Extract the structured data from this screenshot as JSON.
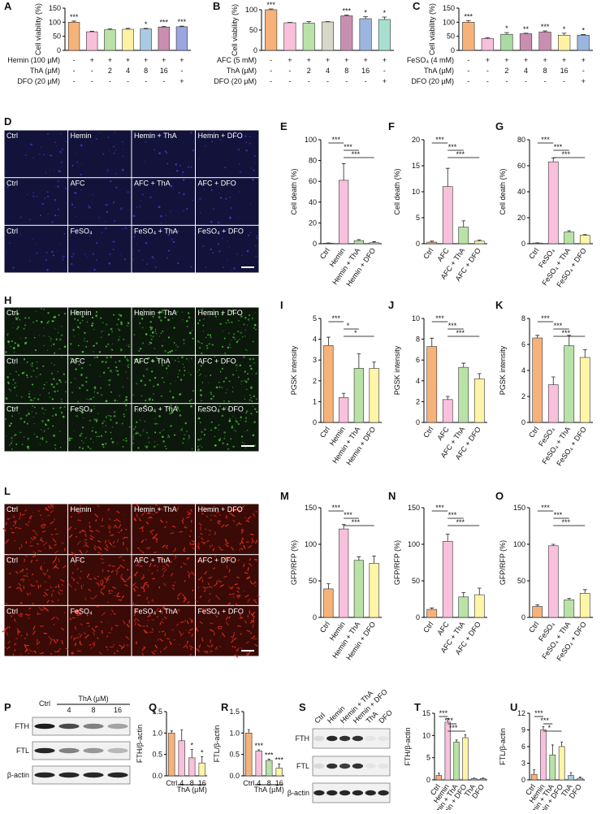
{
  "chart_data": [
    {
      "type": "bar",
      "panel": "A",
      "y_label": "Cell viability (%)",
      "values": [
        100,
        66,
        73,
        75,
        76,
        83,
        84
      ],
      "errors": [
        4,
        2,
        3,
        3,
        2,
        2,
        2
      ],
      "stars": [
        "***",
        null,
        null,
        null,
        "*",
        "***",
        "***"
      ],
      "colors": [
        "#f7b27a",
        "#f9c0dc",
        "#b9e2a6",
        "#fff3a3",
        "#a9cbe6",
        "#c98fb0",
        "#9aa6e0"
      ],
      "ylim": [
        0,
        150
      ],
      "yticks": [
        0,
        50,
        100,
        150
      ],
      "condition_rows": [
        {
          "label": "Hemin (100 µM)",
          "cells": [
            "-",
            "+",
            "+",
            "+",
            "+",
            "+",
            "+"
          ]
        },
        {
          "label": "ThA (µM)",
          "cells": [
            "-",
            "-",
            "2",
            "4",
            "8",
            "16",
            "-"
          ]
        },
        {
          "label": "DFO (20 µM)",
          "cells": [
            "-",
            "-",
            "-",
            "-",
            "-",
            "-",
            "+"
          ]
        }
      ]
    },
    {
      "type": "bar",
      "panel": "B",
      "y_label": "Cell viability (%)",
      "values": [
        100,
        68,
        67,
        70,
        85,
        78,
        76
      ],
      "errors": [
        2,
        1,
        4,
        1,
        2,
        5,
        6
      ],
      "stars": [
        "***",
        null,
        null,
        null,
        "***",
        "*",
        "*"
      ],
      "colors": [
        "#f7b27a",
        "#f9c0dc",
        "#b9e2a6",
        "#d8d8c8",
        "#c98fb0",
        "#9ab6e0",
        "#a8e0d0"
      ],
      "ylim": [
        0,
        100
      ],
      "yticks": [
        0,
        50,
        100
      ],
      "condition_rows": [
        {
          "label": "AFC (5 mM)",
          "cells": [
            "-",
            "+",
            "+",
            "+",
            "+",
            "+",
            "+"
          ]
        },
        {
          "label": "ThA (µM)",
          "cells": [
            "-",
            "-",
            "2",
            "4",
            "8",
            "16",
            "-"
          ]
        },
        {
          "label": "DFO (20 µM)",
          "cells": [
            "-",
            "-",
            "-",
            "-",
            "-",
            "-",
            "+"
          ]
        }
      ]
    },
    {
      "type": "bar",
      "panel": "C",
      "y_label": "Cell viability (%)",
      "values": [
        100,
        42,
        57,
        59,
        65,
        54,
        54
      ],
      "errors": [
        6,
        3,
        6,
        2,
        4,
        7,
        2
      ],
      "stars": [
        "***",
        null,
        "*",
        "**",
        "***",
        "*",
        "*"
      ],
      "colors": [
        "#f7b27a",
        "#f9c0dc",
        "#a8dca0",
        "#c98fb0",
        "#c98fb0",
        "#fff3a3",
        "#9ab6e0"
      ],
      "ylim": [
        0,
        150
      ],
      "yticks": [
        0,
        50,
        100,
        150
      ],
      "condition_rows": [
        {
          "label": "FeSO₄ (4 mM)",
          "cells": [
            "-",
            "+",
            "+",
            "+",
            "+",
            "+",
            "+"
          ]
        },
        {
          "label": "ThA (µM)",
          "cells": [
            "-",
            "-",
            "2",
            "4",
            "8",
            "16",
            "-"
          ]
        },
        {
          "label": "DFO (20 µM)",
          "cells": [
            "-",
            "-",
            "-",
            "-",
            "-",
            "-",
            "+"
          ]
        }
      ]
    },
    {
      "type": "bar",
      "panel": "E",
      "y_label": "Cell death (%)",
      "categories": [
        "Ctrl",
        "Hemin",
        "Hemin + ThA",
        "Hemin + DFO"
      ],
      "values": [
        0.5,
        61,
        3,
        1
      ],
      "errors": [
        0.3,
        16,
        1,
        1
      ],
      "colors": [
        "#f7b27a",
        "#f9c0dc",
        "#b9e2a6",
        "#fff5a6"
      ],
      "ylim": [
        0,
        100
      ],
      "yticks": [
        0,
        20,
        40,
        60,
        80,
        100
      ],
      "brackets": [
        {
          "between": [
            0,
            1
          ],
          "label": "***"
        },
        {
          "between": [
            1,
            2
          ],
          "label": "***"
        },
        {
          "between": [
            1,
            3
          ],
          "label": "***"
        }
      ]
    },
    {
      "type": "bar",
      "panel": "F",
      "y_label": "Cell death (%)",
      "categories": [
        "Ctrl",
        "AFC",
        "AFC + ThA",
        "AFC + DFO"
      ],
      "values": [
        0.3,
        11,
        3.2,
        0.5
      ],
      "errors": [
        0.2,
        3.5,
        1.2,
        0.2
      ],
      "colors": [
        "#f7b27a",
        "#f9c0dc",
        "#b9e2a6",
        "#fff5a6"
      ],
      "ylim": [
        0,
        20
      ],
      "yticks": [
        0,
        5,
        10,
        15,
        20
      ],
      "brackets": [
        {
          "between": [
            0,
            1
          ],
          "label": "***"
        },
        {
          "between": [
            1,
            2
          ],
          "label": "***"
        },
        {
          "between": [
            1,
            3
          ],
          "label": "***"
        }
      ]
    },
    {
      "type": "bar",
      "panel": "G",
      "y_label": "Cell death (%)",
      "categories": [
        "Ctrl",
        "FeSO₄",
        "FeSO₄ + ThA",
        "FeSO₄ + DFO"
      ],
      "values": [
        0.5,
        63,
        9,
        6.5
      ],
      "errors": [
        0.2,
        3,
        1,
        0.5
      ],
      "colors": [
        "#f7b27a",
        "#f9c0dc",
        "#b9e2a6",
        "#fff5a6"
      ],
      "ylim": [
        0,
        80
      ],
      "yticks": [
        0,
        20,
        40,
        60,
        80
      ],
      "brackets": [
        {
          "between": [
            0,
            1
          ],
          "label": "***"
        },
        {
          "between": [
            1,
            2
          ],
          "label": "***"
        },
        {
          "between": [
            1,
            3
          ],
          "label": "***"
        }
      ]
    },
    {
      "type": "bar",
      "panel": "I",
      "y_label": "PGSK intensity",
      "categories": [
        "Ctrl",
        "Hemin",
        "Hemin + ThA",
        "Hemin + DFO"
      ],
      "values": [
        3.7,
        1.2,
        2.6,
        2.6
      ],
      "errors": [
        0.4,
        0.2,
        0.7,
        0.3
      ],
      "colors": [
        "#f7b27a",
        "#f9c0dc",
        "#b9e2a6",
        "#fff5a6"
      ],
      "ylim": [
        0,
        5
      ],
      "yticks": [
        0,
        1,
        2,
        3,
        4,
        5
      ],
      "brackets": [
        {
          "between": [
            0,
            1
          ],
          "label": "***"
        },
        {
          "between": [
            1,
            2
          ],
          "label": "*"
        },
        {
          "between": [
            1,
            3
          ],
          "label": "*"
        }
      ]
    },
    {
      "type": "bar",
      "panel": "J",
      "y_label": "PGSK intensity",
      "categories": [
        "Ctrl",
        "AFC",
        "AFC + ThA",
        "AFC + DFO"
      ],
      "values": [
        7.3,
        2.2,
        5.3,
        4.2
      ],
      "errors": [
        0.8,
        0.3,
        0.4,
        0.5
      ],
      "colors": [
        "#f7b27a",
        "#f9c0dc",
        "#b9e2a6",
        "#fff5a6"
      ],
      "ylim": [
        0,
        10
      ],
      "yticks": [
        0,
        2,
        4,
        6,
        8,
        10
      ],
      "brackets": [
        {
          "between": [
            0,
            1
          ],
          "label": "***"
        },
        {
          "between": [
            1,
            2
          ],
          "label": "***"
        },
        {
          "between": [
            1,
            3
          ],
          "label": "***"
        }
      ]
    },
    {
      "type": "bar",
      "panel": "K",
      "y_label": "PGSK intensity",
      "categories": [
        "Ctrl",
        "FeSO₄",
        "FeSO₄ + ThA",
        "FeSO₄ + DFO"
      ],
      "values": [
        6.5,
        2.9,
        5.9,
        5.0
      ],
      "errors": [
        0.2,
        0.6,
        0.8,
        0.6
      ],
      "colors": [
        "#f7b27a",
        "#f9c0dc",
        "#b9e2a6",
        "#fff5a6"
      ],
      "ylim": [
        0,
        8
      ],
      "yticks": [
        0,
        2,
        4,
        6,
        8
      ],
      "brackets": [
        {
          "between": [
            0,
            1
          ],
          "label": "***"
        },
        {
          "between": [
            1,
            2
          ],
          "label": "***"
        },
        {
          "between": [
            1,
            3
          ],
          "label": "***"
        }
      ]
    },
    {
      "type": "bar",
      "panel": "M",
      "y_label": "GFP/RFP (%)",
      "categories": [
        "Ctrl",
        "Hemin",
        "Hemin + ThA",
        "Hemin + DFO"
      ],
      "values": [
        39,
        121,
        78,
        74
      ],
      "errors": [
        7,
        6,
        5,
        10
      ],
      "colors": [
        "#f7b27a",
        "#f9c0dc",
        "#b9e2a6",
        "#fff5a6"
      ],
      "ylim": [
        0,
        150
      ],
      "yticks": [
        0,
        50,
        100,
        150
      ],
      "brackets": [
        {
          "between": [
            0,
            1
          ],
          "label": "***"
        },
        {
          "between": [
            1,
            2
          ],
          "label": "***"
        },
        {
          "between": [
            1,
            3
          ],
          "label": "***"
        }
      ]
    },
    {
      "type": "bar",
      "panel": "N",
      "y_label": "GFP/RFP (%)",
      "categories": [
        "Ctrl",
        "AFC",
        "AFC + ThA",
        "AFC + DFO"
      ],
      "values": [
        11,
        104,
        28,
        31
      ],
      "errors": [
        2,
        10,
        6,
        9
      ],
      "colors": [
        "#f7b27a",
        "#f9c0dc",
        "#b9e2a6",
        "#fff5a6"
      ],
      "ylim": [
        0,
        150
      ],
      "yticks": [
        0,
        50,
        100,
        150
      ],
      "brackets": [
        {
          "between": [
            0,
            1
          ],
          "label": "***"
        },
        {
          "between": [
            1,
            2
          ],
          "label": "***"
        },
        {
          "between": [
            1,
            3
          ],
          "label": "***"
        }
      ]
    },
    {
      "type": "bar",
      "panel": "O",
      "y_label": "GFP/RFP (%)",
      "categories": [
        "Ctrl",
        "FeSO₄",
        "FeSO₄ + ThA",
        "FeSO₄ + DFO"
      ],
      "values": [
        15,
        98,
        24,
        33
      ],
      "errors": [
        2,
        2,
        2,
        5
      ],
      "colors": [
        "#f7b27a",
        "#f9c0dc",
        "#b9e2a6",
        "#fff5a6"
      ],
      "ylim": [
        0,
        150
      ],
      "yticks": [
        0,
        50,
        100,
        150
      ],
      "brackets": [
        {
          "between": [
            0,
            1
          ],
          "label": "***"
        },
        {
          "between": [
            1,
            2
          ],
          "label": "***"
        },
        {
          "between": [
            1,
            3
          ],
          "label": "***"
        }
      ]
    },
    {
      "type": "bar",
      "panel": "Q",
      "y_label": "FTH/β-actin",
      "categories": [
        "Ctrl",
        "4",
        "8",
        "16"
      ],
      "x_group_label": "ThA (µM)",
      "values": [
        1.0,
        0.82,
        0.42,
        0.3
      ],
      "errors": [
        0.05,
        0.25,
        0.2,
        0.15
      ],
      "stars": [
        null,
        null,
        "*",
        "*"
      ],
      "colors": [
        "#f7b27a",
        "#f9c0dc",
        "#f9c0dc",
        "#fff5a6"
      ],
      "ylim": [
        0,
        1.5
      ],
      "yticks": [
        {
          "value": 0,
          "label": "0.0"
        },
        {
          "value": 0.5,
          "label": "0.5"
        },
        {
          "value": 1,
          "label": "1.0"
        },
        {
          "value": 1.5,
          "label": "1.5"
        }
      ]
    },
    {
      "type": "bar",
      "panel": "R",
      "y_label": "FTL/β-actin",
      "categories": [
        "Ctrl",
        "4",
        "8",
        "16"
      ],
      "x_group_label": "ThA (µM)",
      "values": [
        1.0,
        0.58,
        0.36,
        0.18
      ],
      "errors": [
        0.08,
        0.03,
        0.03,
        0.1
      ],
      "stars": [
        null,
        "***",
        "***",
        "***"
      ],
      "colors": [
        "#f7b27a",
        "#f9c0dc",
        "#b9e2a6",
        "#fff5a6"
      ],
      "ylim": [
        0,
        1.5
      ],
      "yticks": [
        {
          "value": 0,
          "label": "0.0"
        },
        {
          "value": 0.5,
          "label": "0.5"
        },
        {
          "value": 1,
          "label": "1.0"
        },
        {
          "value": 1.5,
          "label": "1.5"
        }
      ]
    },
    {
      "type": "bar",
      "panel": "T",
      "y_label": "FTH/β-actin",
      "categories": [
        "Ctrl",
        "Hemin",
        "Hemin + ThA",
        "Hemin + DFO",
        "ThA",
        "DFO"
      ],
      "values": [
        1,
        13,
        8.5,
        9.5,
        0.3,
        0.3
      ],
      "errors": [
        0.5,
        0.8,
        0.5,
        0.7,
        0.1,
        0.1
      ],
      "colors": [
        "#f7b27a",
        "#f9c0dc",
        "#b9e2a6",
        "#fff5a6",
        "#a9cbe6",
        "#c6b3e6"
      ],
      "ylim": [
        0,
        15
      ],
      "yticks": [
        0,
        5,
        10,
        15
      ],
      "brackets": [
        {
          "between": [
            0,
            1
          ],
          "label": "***"
        },
        {
          "between": [
            1,
            2
          ],
          "label": "***"
        },
        {
          "between": [
            1,
            3
          ],
          "label": "***"
        }
      ]
    },
    {
      "type": "bar",
      "panel": "U",
      "y_label": "FTL/β-actin",
      "categories": [
        "Ctrl",
        "Hemin",
        "Hemin + ThA",
        "Hemin + DFO",
        "ThA",
        "DFO"
      ],
      "values": [
        1,
        9,
        4.5,
        6,
        0.8,
        0.3
      ],
      "errors": [
        0.8,
        0.6,
        1.8,
        0.8,
        0.5,
        0.2
      ],
      "colors": [
        "#f7b27a",
        "#f9c0dc",
        "#b9e2a6",
        "#fff5a6",
        "#a9cbe6",
        "#c6b3e6"
      ],
      "ylim": [
        0,
        12
      ],
      "yticks": [
        0,
        3,
        6,
        9,
        12
      ],
      "brackets": [
        {
          "between": [
            0,
            1
          ],
          "label": "***"
        },
        {
          "between": [
            1,
            2
          ],
          "label": "***"
        },
        {
          "between": [
            1,
            3
          ],
          "label": "*"
        }
      ]
    }
  ],
  "image_panels": [
    {
      "panel": "D",
      "labels": [
        [
          "Ctrl",
          "Hemin",
          "Hemin + ThA",
          "Hemin + DFO"
        ],
        [
          "Ctrl",
          "AFC",
          "AFC + ThA",
          "AFC + DFO"
        ],
        [
          "Ctrl",
          "FeSO₄",
          "FeSO₄ + ThA",
          "FeSO₄ + DFO"
        ]
      ]
    },
    {
      "panel": "H",
      "labels": [
        [
          "Ctrl",
          "Hemin",
          "Hemin + ThA",
          "Hemin + DFO"
        ],
        [
          "Ctrl",
          "AFC",
          "AFC + ThA",
          "AFC + DFO"
        ],
        [
          "Ctrl",
          "FeSO₄",
          "FeSO₄ + ThA",
          "FeSO₄ + DFO"
        ]
      ]
    },
    {
      "panel": "L",
      "labels": [
        [
          "Ctrl",
          "Hemin",
          "Hemin + ThA",
          "Hemin + DFO"
        ],
        [
          "Ctrl",
          "AFC",
          "AFC + ThA",
          "AFC + DFO"
        ],
        [
          "Ctrl",
          "FeSO₄",
          "FeSO₄ + ThA",
          "FeSO₄ + DFO"
        ]
      ]
    }
  ],
  "blots": [
    {
      "panel": "P",
      "rows": [
        "FTH",
        "FTL",
        "β-actin"
      ],
      "lanes": [
        "Ctrl",
        "4",
        "8",
        "16"
      ],
      "lane_group": "ThA (µM)"
    },
    {
      "panel": "S",
      "rows": [
        "FTH",
        "FTL",
        "β-actin"
      ],
      "lanes": [
        "Ctrl",
        "Hemin",
        "Hemin + ThA",
        "Hemin + DFO",
        "ThA",
        "DFO"
      ]
    }
  ]
}
